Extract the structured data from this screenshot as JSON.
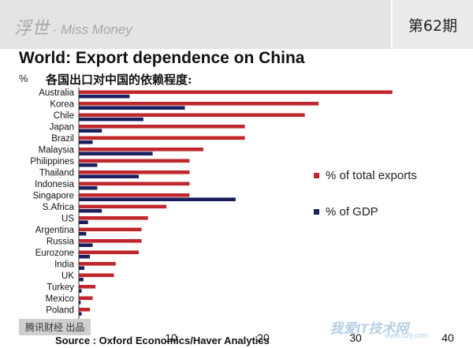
{
  "header": {
    "brand_cn": "浮世",
    "brand_sep": " · ",
    "brand_en": "Miss Money",
    "issue": "第62期"
  },
  "chart_data": {
    "type": "bar",
    "orientation": "horizontal",
    "title": "World: Export dependence on China",
    "subtitle": "各国出口对中国的依赖程度:",
    "unit_label": "%",
    "categories": [
      "Australia",
      "Korea",
      "Chile",
      "Japan",
      "Brazil",
      "Malaysia",
      "Philippines",
      "Thailand",
      "Indonesia",
      "Singapore",
      "S.Africa",
      "US",
      "Argentina",
      "Russia",
      "Eurozone",
      "India",
      "UK",
      "Turkey",
      "Mexico",
      "Poland"
    ],
    "series": [
      {
        "name": "% of total exports",
        "color": "#c0272d",
        "values": [
          34,
          26,
          24.5,
          18,
          18,
          13.5,
          12,
          12,
          12,
          12,
          9.5,
          7.5,
          6.8,
          6.8,
          6.5,
          4,
          3.8,
          1.8,
          1.5,
          1.2
        ]
      },
      {
        "name": "% of GDP",
        "color": "#1b1f5e",
        "values": [
          5.5,
          11.5,
          7,
          2.5,
          1.5,
          8,
          2,
          6.5,
          2,
          17,
          2.5,
          1,
          0.8,
          1.5,
          1.2,
          0.6,
          0.5,
          0.3,
          0.2,
          0.3
        ]
      }
    ],
    "xlim": [
      0,
      40
    ],
    "xticks": [
      "10",
      "20",
      "30",
      "40"
    ]
  },
  "watermark": "腾讯财经 出品",
  "source": "Source : Oxford Economics/Haver Analytics",
  "site_watermark": "我爱IT技术网",
  "site_watermark_url": "www.52ij.com"
}
